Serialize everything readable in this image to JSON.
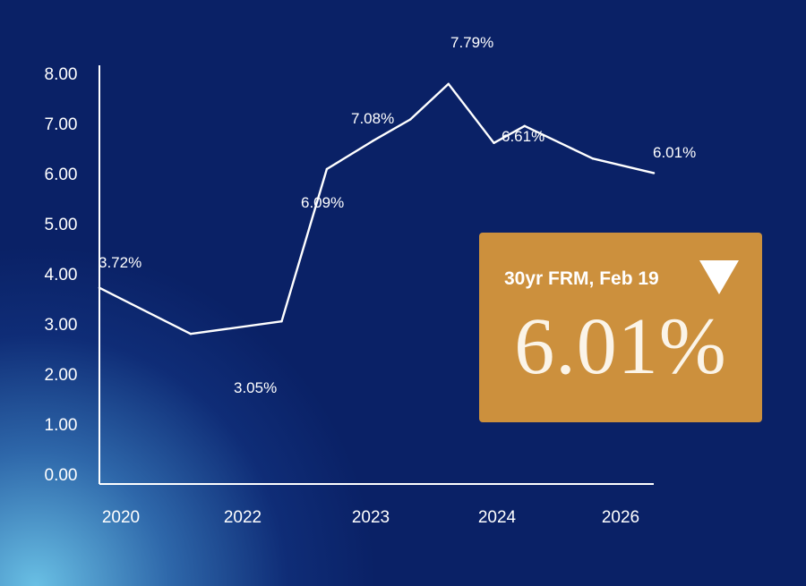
{
  "chart_data": {
    "type": "line",
    "title": "",
    "xlabel": "",
    "ylabel": "",
    "ylim": [
      0,
      8
    ],
    "yticks": [
      "0.00",
      "1.00",
      "2.00",
      "3.00",
      "4.00",
      "5.00",
      "6.00",
      "7.00",
      "8.00"
    ],
    "xtick_labels": [
      "2020",
      "2022",
      "2023",
      "2024",
      "2026"
    ],
    "grid": false,
    "line_color": "#ffffff",
    "points": [
      {
        "x": "2020-01",
        "y": 3.72
      },
      {
        "x": "2021-01",
        "y": 2.8
      },
      {
        "x": "2022-01",
        "y": 3.05
      },
      {
        "x": "2022-07",
        "y": 6.09
      },
      {
        "x": "2023-01",
        "y": 6.65
      },
      {
        "x": "2023-06",
        "y": 7.08
      },
      {
        "x": "2023-11",
        "y": 7.79
      },
      {
        "x": "2024-05",
        "y": 6.61
      },
      {
        "x": "2024-09",
        "y": 6.95
      },
      {
        "x": "2025-06",
        "y": 6.3
      },
      {
        "x": "2026-02",
        "y": 6.01
      }
    ],
    "annotations": [
      "3.72%",
      "3.05%",
      "6.09%",
      "7.08%",
      "7.79%",
      "6.61%",
      "6.01%"
    ]
  },
  "callout": {
    "label": "30yr FRM, Feb 19",
    "value": "6.01%",
    "trend_icon": "triangle-down-icon",
    "background": "#cc903d"
  },
  "colors": {
    "background": "#0a2166",
    "glow": "#6ec8eb"
  }
}
